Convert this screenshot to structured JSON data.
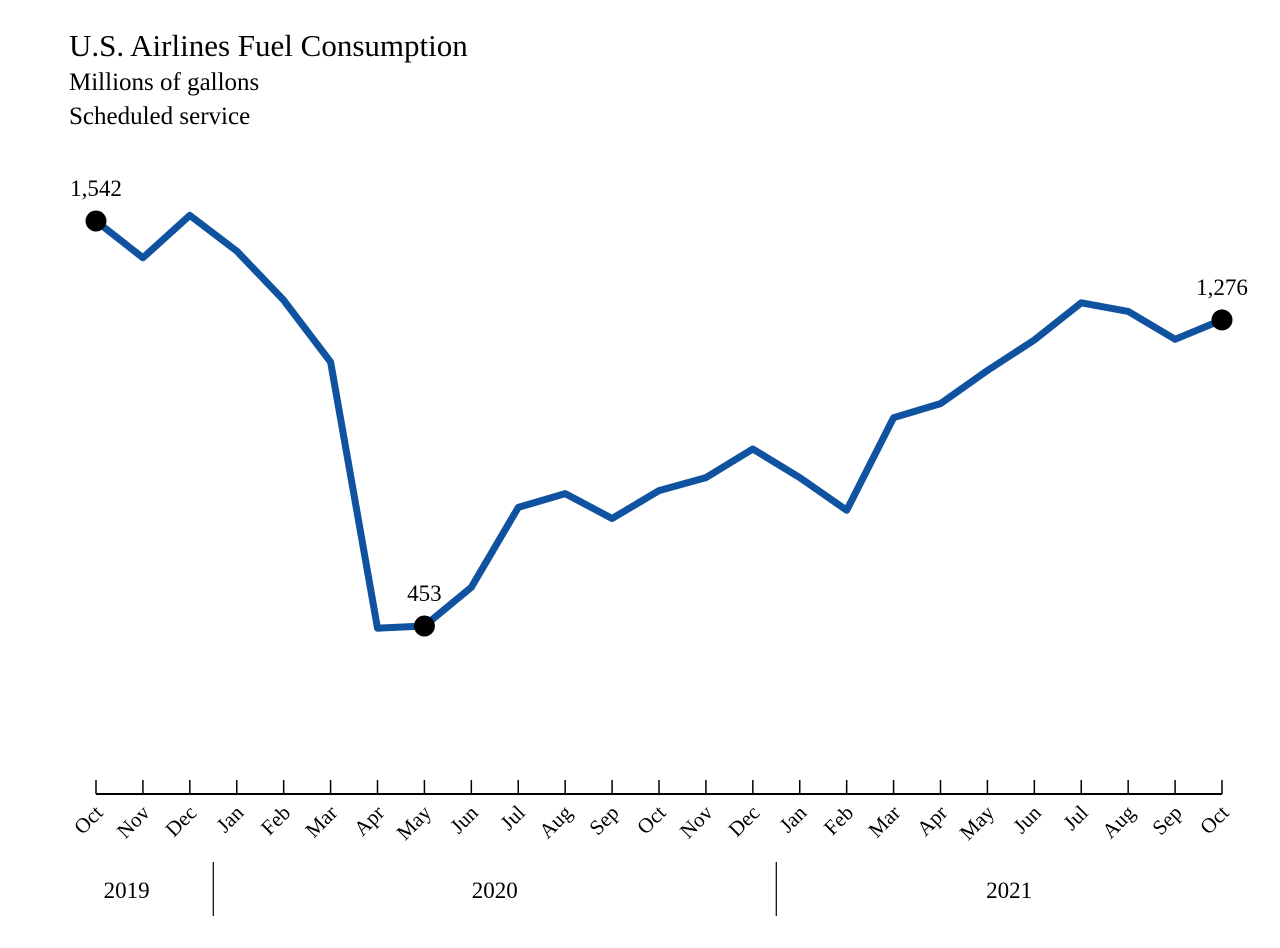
{
  "chart_data": {
    "type": "line",
    "title": "U.S. Airlines Fuel Consumption",
    "subtitle": [
      "Millions of gallons",
      "Scheduled service"
    ],
    "categories": [
      "Oct",
      "Nov",
      "Dec",
      "Jan",
      "Feb",
      "Mar",
      "Apr",
      "May",
      "Jun",
      "Jul",
      "Aug",
      "Sep",
      "Oct",
      "Nov",
      "Dec",
      "Jan",
      "Feb",
      "Mar",
      "Apr",
      "May",
      "Jun",
      "Jul",
      "Aug",
      "Sep",
      "Oct"
    ],
    "years": [
      {
        "label": "2019",
        "start": 0,
        "end": 2
      },
      {
        "label": "2020",
        "start": 3,
        "end": 14
      },
      {
        "label": "2021",
        "start": 15,
        "end": 24
      }
    ],
    "series": [
      {
        "values": [
          1542,
          1443,
          1557,
          1461,
          1329,
          1163,
          447,
          453,
          557,
          772,
          809,
          742,
          817,
          852,
          929,
          852,
          764,
          1013,
          1051,
          1140,
          1222,
          1322,
          1299,
          1224,
          1276
        ],
        "color": "#0f52a0"
      }
    ],
    "labeled_points": [
      {
        "index": 0,
        "label": "1,542"
      },
      {
        "index": 7,
        "label": "453"
      },
      {
        "index": 24,
        "label": "1,276"
      }
    ],
    "ylim": [
      0,
      1650
    ],
    "grid": false,
    "legend": "none"
  }
}
